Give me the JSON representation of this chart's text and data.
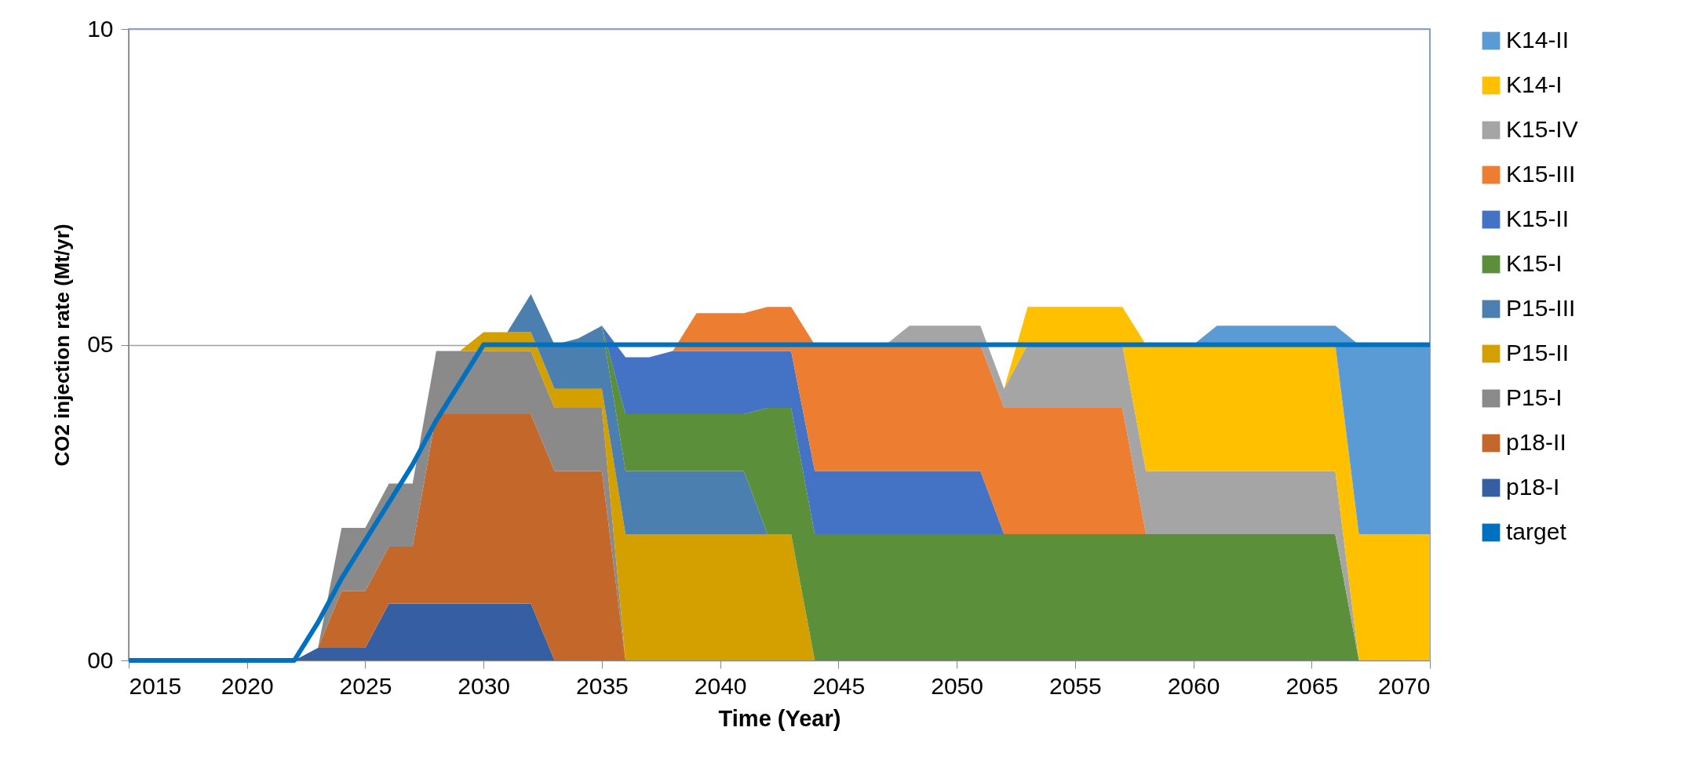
{
  "chart_data": {
    "type": "area",
    "stacked": true,
    "xlabel": "Time (Year)",
    "ylabel": "CO2 injection rate (Mt/yr)",
    "x": [
      2015,
      2016,
      2017,
      2018,
      2019,
      2020,
      2021,
      2022,
      2023,
      2024,
      2025,
      2026,
      2027,
      2028,
      2029,
      2030,
      2031,
      2032,
      2033,
      2034,
      2035,
      2036,
      2037,
      2038,
      2039,
      2040,
      2041,
      2042,
      2043,
      2044,
      2045,
      2046,
      2047,
      2048,
      2049,
      2050,
      2051,
      2052,
      2053,
      2054,
      2055,
      2056,
      2057,
      2058,
      2059,
      2060,
      2061,
      2062,
      2063,
      2064,
      2065,
      2066,
      2067,
      2068,
      2069,
      2070
    ],
    "xlim": [
      2015,
      2070
    ],
    "xticks": [
      2015,
      2020,
      2025,
      2030,
      2035,
      2040,
      2045,
      2050,
      2055,
      2060,
      2065,
      2070
    ],
    "ylim": [
      0,
      10
    ],
    "yticks": [
      {
        "value": 0,
        "label": "00"
      },
      {
        "value": 5,
        "label": "05"
      },
      {
        "value": 10,
        "label": "10"
      }
    ],
    "grid": "y",
    "legend": "right",
    "series": [
      {
        "name": "p18-I",
        "color": "#365fa3",
        "values": [
          null,
          null,
          null,
          null,
          null,
          null,
          null,
          0,
          0.2,
          0.2,
          0.2,
          0.9,
          0.9,
          0.9,
          0.9,
          0.9,
          0.9,
          0.9,
          0,
          null,
          null,
          null,
          null,
          null,
          null,
          null,
          null,
          null,
          null,
          null,
          null,
          null,
          null,
          null,
          null,
          null,
          null,
          null,
          null,
          null,
          null,
          null,
          null,
          null,
          null,
          null,
          null,
          null,
          null,
          null,
          null,
          null,
          null,
          null,
          null,
          null
        ]
      },
      {
        "name": "p18-II",
        "color": "#c4672a",
        "values": [
          null,
          null,
          null,
          null,
          null,
          null,
          null,
          null,
          0,
          0.9,
          0.9,
          0.9,
          0.9,
          3.0,
          3.0,
          3.0,
          3.0,
          3.0,
          3.0,
          3.0,
          3.0,
          0,
          null,
          null,
          null,
          null,
          null,
          null,
          null,
          null,
          null,
          null,
          null,
          null,
          null,
          null,
          null,
          null,
          null,
          null,
          null,
          null,
          null,
          null,
          null,
          null,
          null,
          null,
          null,
          null,
          null,
          null,
          null,
          null,
          null,
          null
        ]
      },
      {
        "name": "P15-I",
        "color": "#8a8a8a",
        "values": [
          null,
          null,
          null,
          null,
          null,
          null,
          null,
          null,
          0,
          1.0,
          1.0,
          1.0,
          1.0,
          1.0,
          1.0,
          1.0,
          1.0,
          1.0,
          1.0,
          1.0,
          1.0,
          0,
          null,
          null,
          null,
          null,
          null,
          null,
          null,
          null,
          null,
          null,
          null,
          null,
          null,
          null,
          null,
          null,
          null,
          null,
          null,
          null,
          null,
          null,
          null,
          null,
          null,
          null,
          null,
          null,
          null,
          null,
          null,
          null,
          null,
          null
        ]
      },
      {
        "name": "P15-II",
        "color": "#d4a000",
        "values": [
          null,
          null,
          null,
          null,
          null,
          null,
          null,
          null,
          null,
          null,
          null,
          null,
          null,
          null,
          0,
          0.3,
          0.3,
          0.3,
          0.3,
          0.3,
          0.3,
          2.0,
          2.0,
          2.0,
          2.0,
          2.0,
          2.0,
          2.0,
          2.0,
          0,
          null,
          null,
          null,
          null,
          null,
          null,
          null,
          null,
          null,
          null,
          null,
          null,
          null,
          null,
          null,
          null,
          null,
          null,
          null,
          null,
          null,
          null,
          null,
          null,
          null,
          null
        ]
      },
      {
        "name": "P15-III",
        "color": "#4a7fb0",
        "values": [
          null,
          null,
          null,
          null,
          null,
          null,
          null,
          null,
          null,
          null,
          null,
          null,
          null,
          null,
          null,
          null,
          0,
          0.6,
          0.7,
          0.8,
          1.0,
          1.0,
          1.0,
          1.0,
          1.0,
          1.0,
          1.0,
          0,
          null,
          null,
          null,
          null,
          null,
          null,
          null,
          null,
          null,
          null,
          null,
          null,
          null,
          null,
          null,
          null,
          null,
          null,
          null,
          null,
          null,
          null,
          null,
          null,
          null,
          null,
          null,
          null
        ]
      },
      {
        "name": "K15-I",
        "color": "#5b8f3a",
        "values": [
          null,
          null,
          null,
          null,
          null,
          null,
          null,
          null,
          null,
          null,
          null,
          null,
          null,
          null,
          null,
          null,
          null,
          null,
          null,
          null,
          0,
          0.9,
          0.9,
          0.9,
          0.9,
          0.9,
          0.9,
          2.0,
          2.0,
          2.0,
          2.0,
          2.0,
          2.0,
          2.0,
          2.0,
          2.0,
          2.0,
          2.0,
          2.0,
          2.0,
          2.0,
          2.0,
          2.0,
          2.0,
          2.0,
          2.0,
          2.0,
          2.0,
          2.0,
          2.0,
          2.0,
          2.0,
          0,
          null,
          null,
          null
        ]
      },
      {
        "name": "K15-II",
        "color": "#4472c4",
        "values": [
          null,
          null,
          null,
          null,
          null,
          null,
          null,
          null,
          null,
          null,
          null,
          null,
          null,
          null,
          null,
          null,
          null,
          null,
          null,
          null,
          0,
          0.9,
          0.9,
          1.0,
          1.0,
          1.0,
          1.0,
          0.9,
          0.9,
          1.0,
          1.0,
          1.0,
          1.0,
          1.0,
          1.0,
          1.0,
          1.0,
          0,
          null,
          null,
          null,
          null,
          null,
          null,
          null,
          null,
          null,
          null,
          null,
          null,
          null,
          null,
          null,
          null,
          null,
          null
        ]
      },
      {
        "name": "K15-III",
        "color": "#ed7d31",
        "values": [
          null,
          null,
          null,
          null,
          null,
          null,
          null,
          null,
          null,
          null,
          null,
          null,
          null,
          null,
          null,
          null,
          null,
          null,
          null,
          null,
          null,
          null,
          null,
          0,
          0.6,
          0.6,
          0.6,
          0.7,
          0.7,
          2.0,
          2.0,
          2.0,
          2.0,
          2.0,
          2.0,
          2.0,
          2.0,
          2.0,
          2.0,
          2.0,
          2.0,
          2.0,
          2.0,
          0,
          null,
          null,
          null,
          null,
          null,
          null,
          null,
          null,
          null,
          null,
          null,
          null
        ]
      },
      {
        "name": "K15-IV",
        "color": "#a5a5a5",
        "values": [
          null,
          null,
          null,
          null,
          null,
          null,
          null,
          null,
          null,
          null,
          null,
          null,
          null,
          null,
          null,
          null,
          null,
          null,
          null,
          null,
          null,
          null,
          null,
          null,
          null,
          null,
          null,
          null,
          null,
          null,
          null,
          null,
          0,
          0.3,
          0.3,
          0.3,
          0.3,
          0.3,
          1.0,
          1.0,
          1.0,
          1.0,
          1.0,
          1.0,
          1.0,
          1.0,
          1.0,
          1.0,
          1.0,
          1.0,
          1.0,
          1.0,
          0,
          null,
          null,
          null
        ]
      },
      {
        "name": "K14-I",
        "color": "#ffc000",
        "values": [
          null,
          null,
          null,
          null,
          null,
          null,
          null,
          null,
          null,
          null,
          null,
          null,
          null,
          null,
          null,
          null,
          null,
          null,
          null,
          null,
          null,
          null,
          null,
          null,
          null,
          null,
          null,
          null,
          null,
          null,
          null,
          null,
          null,
          null,
          null,
          null,
          null,
          0,
          0.6,
          0.6,
          0.6,
          0.6,
          0.6,
          2.0,
          2.0,
          2.0,
          2.0,
          2.0,
          2.0,
          2.0,
          2.0,
          2.0,
          2.0,
          2.0,
          2.0,
          2.0
        ]
      },
      {
        "name": "K14-II",
        "color": "#5b9bd5",
        "values": [
          null,
          null,
          null,
          null,
          null,
          null,
          null,
          null,
          null,
          null,
          null,
          null,
          null,
          null,
          null,
          null,
          null,
          null,
          null,
          null,
          null,
          null,
          null,
          null,
          null,
          null,
          null,
          null,
          null,
          null,
          null,
          null,
          null,
          null,
          null,
          null,
          null,
          null,
          null,
          null,
          null,
          null,
          null,
          null,
          null,
          0,
          0.3,
          0.3,
          0.3,
          0.3,
          0.3,
          0.3,
          3.0,
          3.0,
          3.0,
          3.0
        ]
      },
      {
        "name": "target",
        "type": "line",
        "color": "#0070c0",
        "values": [
          0,
          0,
          0,
          0,
          0,
          0,
          0,
          0,
          0.6,
          1.3,
          1.9,
          2.5,
          3.1,
          3.8,
          4.4,
          5,
          5,
          5,
          5,
          5,
          5,
          5,
          5,
          5,
          5,
          5,
          5,
          5,
          5,
          5,
          5,
          5,
          5,
          5,
          5,
          5,
          5,
          5,
          5,
          5,
          5,
          5,
          5,
          5,
          5,
          5,
          5,
          5,
          5,
          5,
          5,
          5,
          5,
          5,
          5,
          5
        ]
      }
    ]
  }
}
